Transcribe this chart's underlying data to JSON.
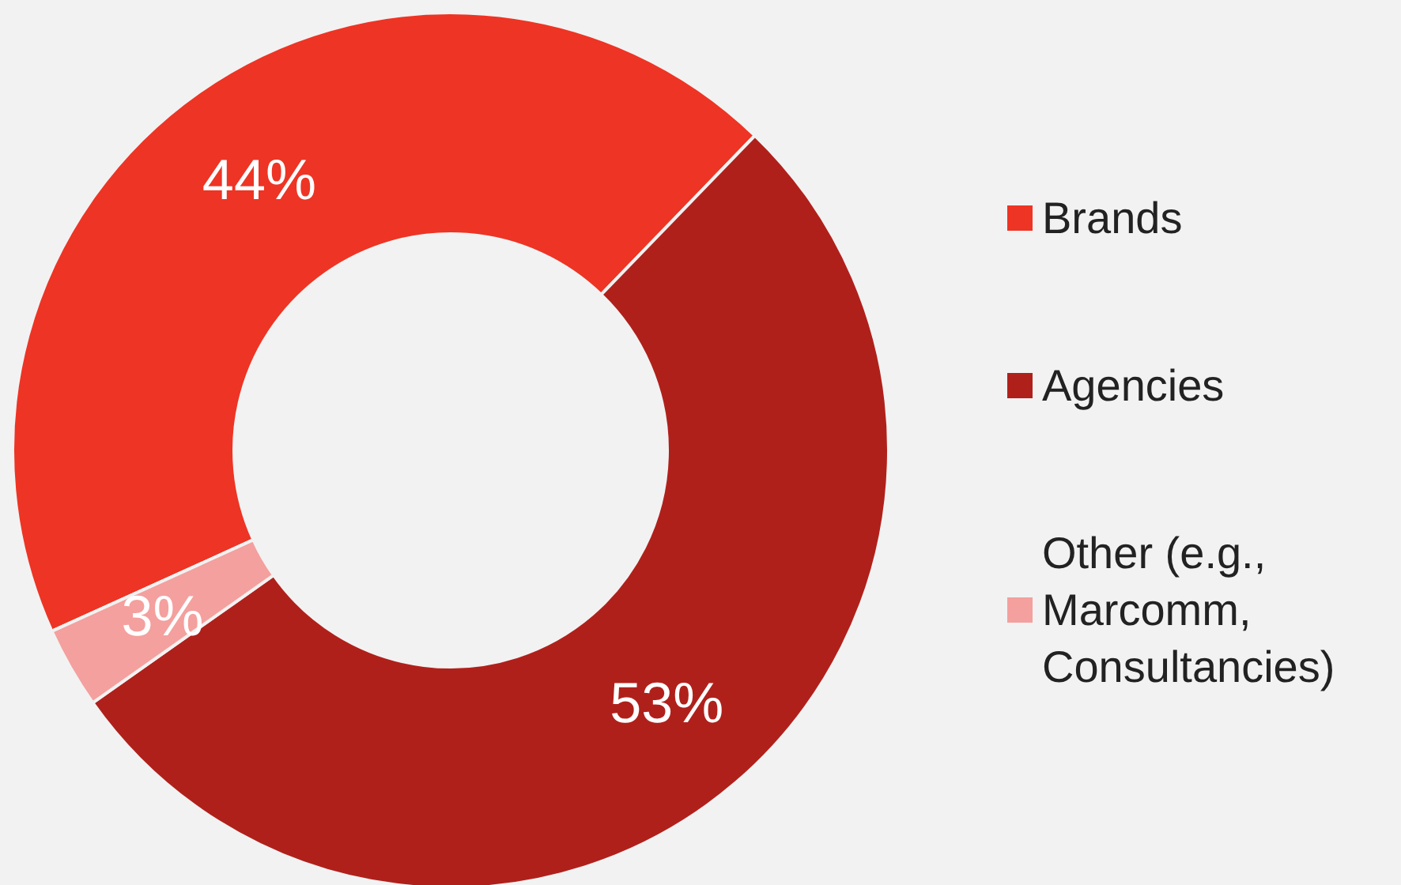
{
  "chart_data": {
    "type": "donut",
    "categories": [
      "Brands",
      "Agencies",
      "Other (e.g., Marcomm, Consultancies)"
    ],
    "values": [
      44,
      53,
      3
    ],
    "colors": [
      "#ee3424",
      "#b0201b",
      "#f4a09e"
    ],
    "value_labels": [
      "44%",
      "53%",
      "3%"
    ],
    "legend": "right"
  }
}
